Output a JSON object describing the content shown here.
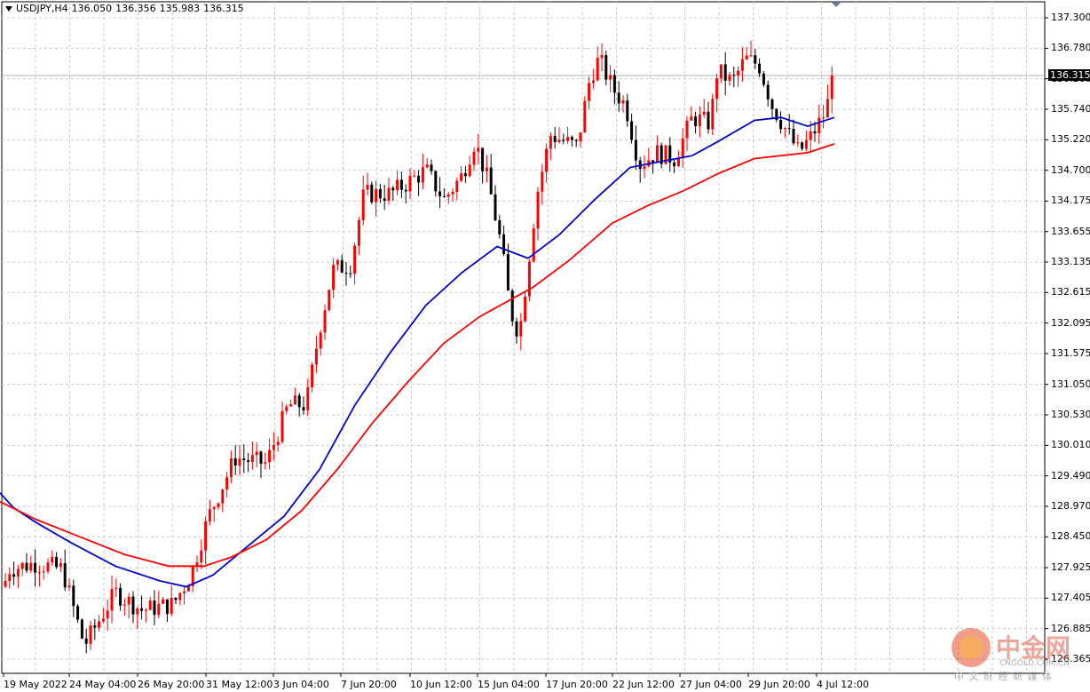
{
  "header": {
    "symbol": "USDJPY,H4",
    "open": "136.050",
    "high": "136.356",
    "low": "135.983",
    "close": "136.315"
  },
  "current_price_label": "136.315",
  "watermark": {
    "logo_text": "中金网",
    "logo_sub": "CNGOLD.COM.CN",
    "slogan": "中 文 财 经 新 媒 体"
  },
  "colors": {
    "bull": "#ff0000",
    "bear": "#000000",
    "ma_fast": "#0000cc",
    "ma_slow": "#ff0000",
    "grid": "#c8c8c8"
  },
  "chart_data": {
    "type": "candlestick",
    "ylim": [
      126.1,
      137.6
    ],
    "y_ticks": [
      "137.300",
      "136.780",
      "136.260",
      "135.740",
      "135.220",
      "134.700",
      "134.175",
      "133.655",
      "133.135",
      "132.615",
      "132.095",
      "131.575",
      "131.050",
      "130.530",
      "130.010",
      "129.490",
      "128.970",
      "128.450",
      "127.925",
      "127.405",
      "126.885",
      "126.365"
    ],
    "x_ticks": [
      "19 May 2022",
      "24 May 04:00",
      "26 May 20:00",
      "31 May 12:00",
      "3 Jun 04:00",
      "7 Jun 20:00",
      "10 Jun 12:00",
      "15 Jun 04:00",
      "17 Jun 20:00",
      "22 Jun 12:00",
      "27 Jun 04:00",
      "29 Jun 20:00",
      "4 Jul 12:00"
    ],
    "grid": true,
    "series": [
      {
        "name": "",
        "type": "ma",
        "color": "#0000cc",
        "points": [
          [
            0,
            129.2
          ],
          [
            15,
            128.95
          ],
          [
            40,
            128.7
          ],
          [
            80,
            128.35
          ],
          [
            130,
            127.95
          ],
          [
            180,
            127.7
          ],
          [
            210,
            127.6
          ],
          [
            240,
            127.8
          ],
          [
            280,
            128.3
          ],
          [
            320,
            128.8
          ],
          [
            360,
            129.6
          ],
          [
            400,
            130.7
          ],
          [
            440,
            131.6
          ],
          [
            480,
            132.4
          ],
          [
            520,
            132.95
          ],
          [
            560,
            133.4
          ],
          [
            595,
            133.2
          ],
          [
            630,
            133.6
          ],
          [
            670,
            134.2
          ],
          [
            710,
            134.75
          ],
          [
            745,
            134.85
          ],
          [
            780,
            134.95
          ],
          [
            810,
            135.2
          ],
          [
            850,
            135.55
          ],
          [
            880,
            135.6
          ],
          [
            910,
            135.45
          ],
          [
            940,
            135.6
          ]
        ]
      },
      {
        "name": "",
        "type": "ma",
        "color": "#ff0000",
        "points": [
          [
            0,
            129.05
          ],
          [
            40,
            128.75
          ],
          [
            90,
            128.45
          ],
          [
            140,
            128.15
          ],
          [
            190,
            127.95
          ],
          [
            230,
            127.95
          ],
          [
            260,
            128.1
          ],
          [
            300,
            128.4
          ],
          [
            340,
            128.9
          ],
          [
            380,
            129.6
          ],
          [
            420,
            130.4
          ],
          [
            460,
            131.1
          ],
          [
            500,
            131.75
          ],
          [
            540,
            132.2
          ],
          [
            570,
            132.45
          ],
          [
            600,
            132.7
          ],
          [
            640,
            133.15
          ],
          [
            690,
            133.8
          ],
          [
            730,
            134.1
          ],
          [
            770,
            134.35
          ],
          [
            810,
            134.65
          ],
          [
            850,
            134.9
          ],
          [
            880,
            134.95
          ],
          [
            910,
            135.0
          ],
          [
            940,
            135.15
          ]
        ]
      }
    ]
  }
}
